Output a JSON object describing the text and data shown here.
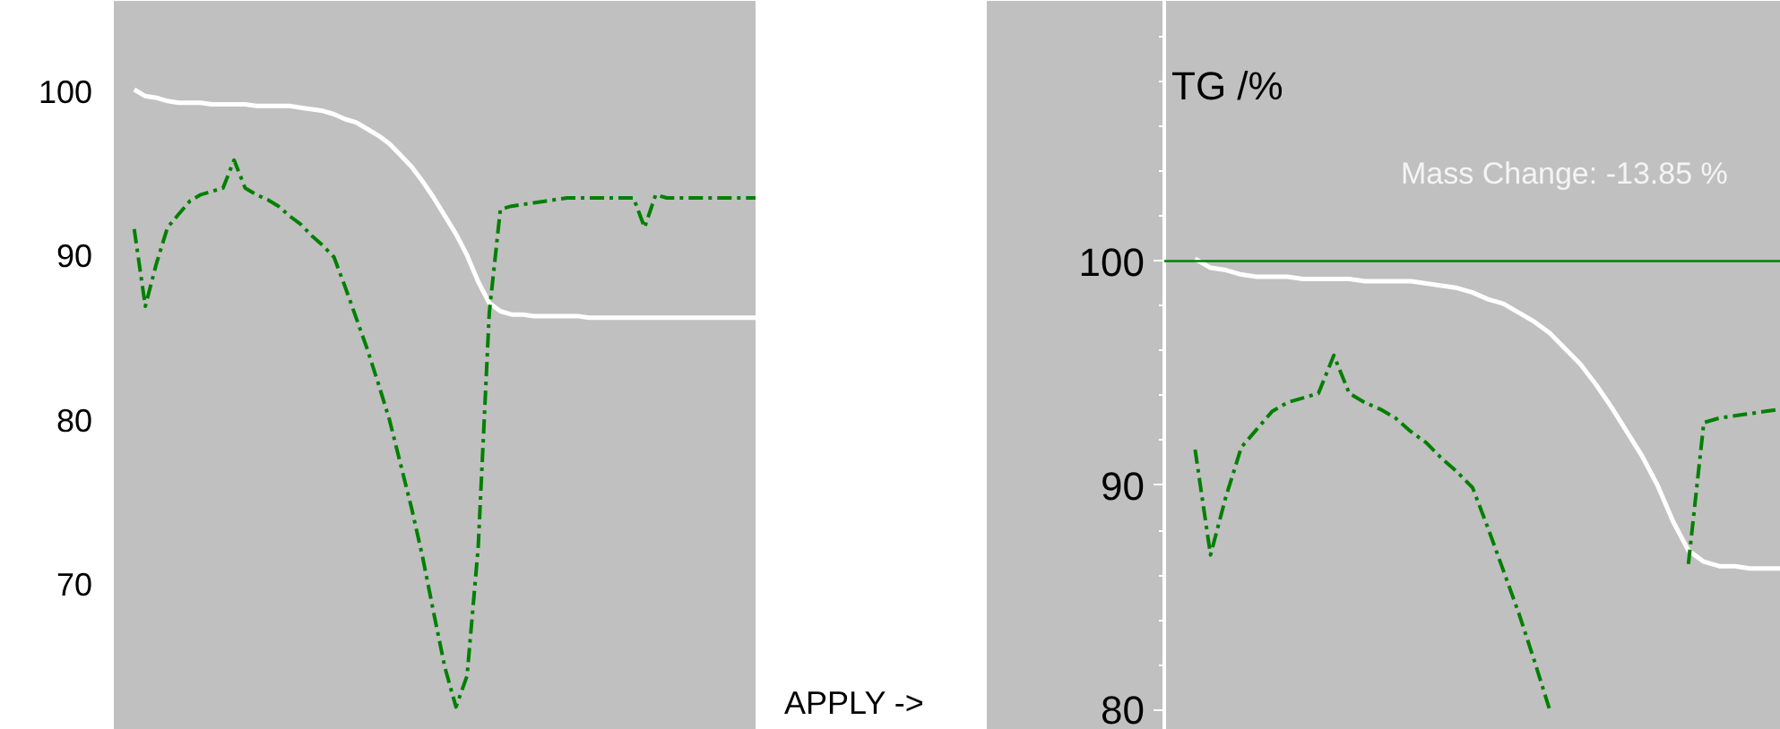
{
  "chart_data": [
    {
      "type": "line",
      "annotations": [
        "APPLY ->"
      ],
      "ylim": [
        61.1,
        105.5
      ],
      "yticks": [
        70,
        80,
        90,
        100
      ],
      "tick_labels": "y",
      "grid": false,
      "categories": [
        null,
        null,
        null,
        null,
        null,
        null,
        null,
        null,
        null,
        null,
        null,
        null,
        null,
        null,
        null,
        null,
        null,
        null,
        null,
        null,
        null,
        null,
        null,
        null,
        null,
        null,
        null,
        null,
        null,
        null,
        null,
        null,
        null,
        null,
        null,
        null,
        null,
        null,
        null,
        null,
        null,
        null,
        null,
        null,
        null,
        null,
        null,
        null,
        null,
        null,
        null,
        null,
        null,
        null,
        null,
        null,
        null,
        null,
        null
      ],
      "series": [
        {
          "color": "#ffffff",
          "line_style": "solid",
          "values": [
            null,
            null,
            100.1,
            99.7,
            99.6,
            99.4,
            99.3,
            99.3,
            99.3,
            99.2,
            99.2,
            99.2,
            99.2,
            99.1,
            99.1,
            99.1,
            99.1,
            99.0,
            98.9,
            98.8,
            98.6,
            98.3,
            98.1,
            97.7,
            97.3,
            96.8,
            96.1,
            95.4,
            94.5,
            93.5,
            92.4,
            91.3,
            90.0,
            88.4,
            87.1,
            86.6,
            86.4,
            86.4,
            86.3,
            86.3,
            86.3,
            86.3,
            86.3,
            86.2,
            86.2,
            86.2,
            86.2,
            86.2,
            86.2,
            86.2,
            86.2,
            86.2,
            86.2,
            86.2,
            86.2,
            86.2,
            86.2,
            86.2,
            86.2
          ]
        },
        {
          "color": "#008000",
          "line_style": "dashed",
          "values": [
            null,
            null,
            91.6,
            86.9,
            89.5,
            91.7,
            92.5,
            93.3,
            93.7,
            93.9,
            94.1,
            95.8,
            94.1,
            93.7,
            93.4,
            93.0,
            92.4,
            91.9,
            91.2,
            90.6,
            89.9,
            88.1,
            86.2,
            84.3,
            82.2,
            80.0,
            77.3,
            74.6,
            71.6,
            68.2,
            64.9,
            62.5,
            64.4,
            72.2,
            86.5,
            92.8,
            93.0,
            93.1,
            93.2,
            93.3,
            93.4,
            93.5,
            93.5,
            93.5,
            93.5,
            93.5,
            93.5,
            93.5,
            91.7,
            93.7,
            93.5,
            93.5,
            93.5,
            93.5,
            93.5,
            93.5,
            93.5,
            93.5,
            93.5
          ]
        }
      ]
    },
    {
      "type": "line",
      "ylabel": "TG /%",
      "annotations": [
        "Mass Change: -13.85 %"
      ],
      "ylim": [
        79.1,
        111.6
      ],
      "yticks": [
        80,
        90,
        100
      ],
      "tick_labels": "y",
      "grid": false,
      "ref_lines": [
        {
          "axis": "y",
          "value": 100,
          "color": "#008000",
          "line_style": "solid"
        }
      ],
      "categories": [
        null,
        null,
        null,
        null,
        null,
        null,
        null,
        null,
        null,
        null,
        null,
        null,
        null,
        null,
        null,
        null,
        null,
        null,
        null,
        null,
        null,
        null,
        null,
        null,
        null,
        null,
        null,
        null,
        null,
        null,
        null,
        null,
        null,
        null,
        null,
        null,
        null,
        null,
        null,
        null,
        null
      ],
      "series": [
        {
          "color": "#ffffff",
          "line_style": "solid",
          "values": [
            null,
            null,
            100.1,
            99.7,
            99.6,
            99.4,
            99.3,
            99.3,
            99.3,
            99.2,
            99.2,
            99.2,
            99.2,
            99.1,
            99.1,
            99.1,
            99.1,
            99.0,
            98.9,
            98.8,
            98.6,
            98.3,
            98.1,
            97.7,
            97.3,
            96.8,
            96.1,
            95.4,
            94.5,
            93.5,
            92.4,
            91.3,
            90.0,
            88.4,
            87.1,
            86.6,
            86.4,
            86.4,
            86.3,
            86.3,
            86.3
          ]
        },
        {
          "color": "#008000",
          "line_style": "dashed",
          "values": [
            null,
            null,
            91.6,
            86.9,
            89.5,
            91.7,
            92.5,
            93.3,
            93.7,
            93.9,
            94.1,
            95.8,
            94.1,
            93.7,
            93.4,
            93.0,
            92.4,
            91.9,
            91.2,
            90.6,
            89.9,
            88.1,
            86.2,
            84.3,
            82.2,
            80.0,
            null,
            null,
            null,
            null,
            null,
            null,
            null,
            null,
            86.5,
            92.8,
            93.0,
            93.1,
            93.2,
            93.3,
            93.4
          ]
        }
      ]
    }
  ]
}
